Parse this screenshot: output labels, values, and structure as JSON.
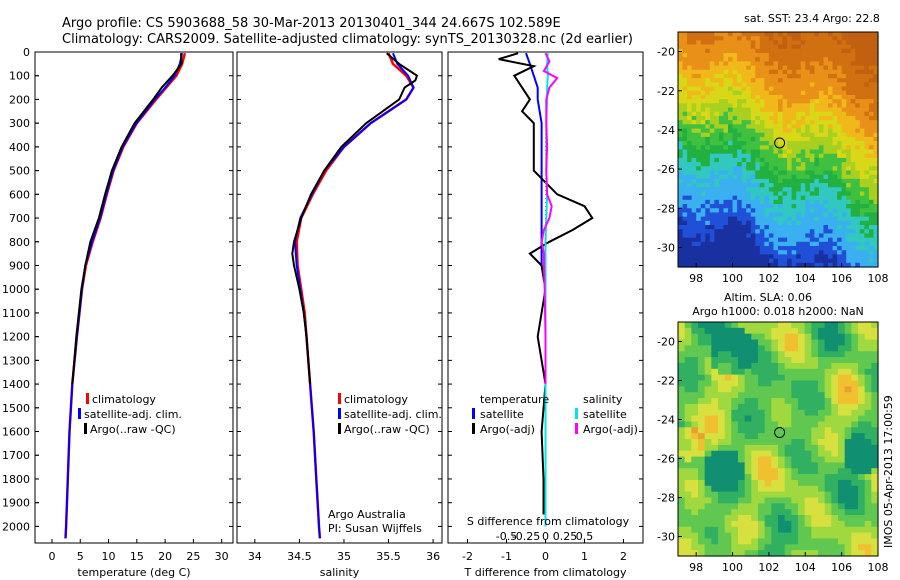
{
  "header": {
    "line1": "Argo profile: CS 5903688_58 30-Mar-2013 20130401_344 24.667S 102.589E",
    "line2": "Climatology: CARS2009. Satellite-adjusted climatology: synTS_20130328.nc (2d earlier)"
  },
  "colors": {
    "climatology": "#ff0000",
    "satellite": "#0000ff",
    "argo": "#000000",
    "sat_salinity": "#00e5ee",
    "argo_salinity": "#ff00ff"
  },
  "chart_data": [
    {
      "type": "line",
      "id": "temperature",
      "xlabel": "temperature (deg C)",
      "ylabel": "",
      "xlim": [
        -3,
        32
      ],
      "ylim": [
        2070,
        0
      ],
      "xticks": [
        0,
        5,
        10,
        15,
        20,
        25,
        30
      ],
      "yticks": [
        0,
        100,
        200,
        300,
        400,
        500,
        600,
        700,
        800,
        900,
        1000,
        1100,
        1200,
        1300,
        1400,
        1500,
        1600,
        1700,
        1800,
        1900,
        2000
      ],
      "legend": [
        "climatology",
        "satellite-adj. clim.",
        "Argo(..raw -QC)"
      ],
      "series": [
        {
          "name": "climatology",
          "depth": [
            5,
            50,
            100,
            150,
            200,
            300,
            400,
            500,
            600,
            700,
            800,
            900,
            1000,
            1200,
            1400,
            1600,
            1800,
            2000,
            2050
          ],
          "values": [
            23.5,
            23.0,
            22.0,
            20.2,
            18.4,
            15.0,
            12.6,
            10.9,
            9.7,
            8.6,
            7.2,
            6.0,
            5.3,
            4.4,
            3.6,
            3.1,
            2.8,
            2.5,
            2.4
          ]
        },
        {
          "name": "satellite-adj. clim.",
          "depth": [
            5,
            50,
            100,
            150,
            200,
            300,
            400,
            500,
            600,
            700,
            800,
            900,
            1000,
            1200,
            1400,
            1600,
            1800,
            2000,
            2050
          ],
          "values": [
            23.0,
            22.6,
            21.7,
            20.0,
            18.2,
            14.9,
            12.5,
            10.8,
            9.6,
            8.5,
            7.1,
            5.9,
            5.3,
            4.4,
            3.6,
            3.1,
            2.8,
            2.5,
            2.4
          ]
        },
        {
          "name": "Argo(..raw -QC)",
          "depth": [
            5,
            50,
            100,
            150,
            200,
            300,
            400,
            500,
            600,
            700,
            800,
            900,
            1000,
            1200,
            1400
          ],
          "values": [
            22.8,
            22.9,
            21.3,
            19.4,
            17.9,
            14.6,
            12.3,
            10.6,
            9.4,
            8.3,
            6.8,
            5.9,
            5.2,
            4.3,
            3.6
          ]
        }
      ]
    },
    {
      "type": "line",
      "id": "salinity",
      "xlabel": "salinity",
      "xlim": [
        33.8,
        36.1
      ],
      "ylim": [
        2070,
        0
      ],
      "xticks": [
        34,
        34.5,
        35,
        35.5,
        36
      ],
      "legend": [
        "climatology",
        "satellite-adj. clim.",
        "Argo(..raw -QC)"
      ],
      "annotation": [
        "Argo Australia",
        "PI: Susan Wijffels"
      ],
      "series": [
        {
          "name": "climatology",
          "depth": [
            5,
            50,
            100,
            150,
            200,
            300,
            400,
            500,
            600,
            700,
            800,
            900,
            1000,
            1100,
            1200,
            1400,
            1600,
            1800,
            2000,
            2050
          ],
          "values": [
            35.5,
            35.55,
            35.7,
            35.78,
            35.7,
            35.3,
            35.0,
            34.8,
            34.65,
            34.52,
            34.47,
            34.48,
            34.52,
            34.56,
            34.58,
            34.62,
            34.66,
            34.69,
            34.72,
            34.73
          ]
        },
        {
          "name": "satellite-adj. clim.",
          "depth": [
            5,
            50,
            100,
            150,
            200,
            300,
            400,
            500,
            600,
            700,
            800,
            900,
            1000,
            1100,
            1200,
            1400,
            1600,
            1800,
            2000,
            2050
          ],
          "values": [
            35.55,
            35.6,
            35.72,
            35.78,
            35.7,
            35.3,
            35.0,
            34.78,
            34.64,
            34.51,
            34.45,
            34.47,
            34.51,
            34.55,
            34.58,
            34.62,
            34.66,
            34.69,
            34.72,
            34.73
          ]
        },
        {
          "name": "Argo(..raw -QC)",
          "depth": [
            5,
            50,
            100,
            120,
            150,
            200,
            300,
            400,
            500,
            600,
            700,
            800,
            850,
            900,
            1000,
            1100,
            1200,
            1400
          ],
          "values": [
            35.48,
            35.62,
            35.82,
            35.8,
            35.68,
            35.62,
            35.25,
            34.97,
            34.78,
            34.63,
            34.52,
            34.44,
            34.42,
            34.44,
            34.5,
            34.55,
            34.58,
            34.62
          ]
        }
      ]
    },
    {
      "type": "line",
      "id": "difference",
      "xlabel": "T difference from climatology",
      "top_axis_label": "S difference from climatology",
      "xlim": [
        -2.5,
        2.5
      ],
      "ylim": [
        2070,
        0
      ],
      "xticks": [
        -2,
        -1,
        0,
        1,
        2
      ],
      "xtick_labels": [
        "-2",
        "-1",
        "0",
        "1",
        "2"
      ],
      "s_ticks": [
        -0.5,
        -0.25,
        0,
        0.25,
        0.5
      ],
      "s_tick_labels": [
        "-0.5",
        "-0.25",
        "0",
        "0.25",
        "0.5"
      ],
      "legend_temperature": {
        "title": "temperature",
        "items": [
          "satellite",
          "Argo(-adj)"
        ]
      },
      "legend_salinity": {
        "title": "salinity",
        "items": [
          "satellite",
          "Argo(-adj)"
        ]
      },
      "series": [
        {
          "name": "temperature satellite",
          "depth": [
            5,
            50,
            100,
            150,
            200,
            300,
            400,
            500,
            600,
            700,
            800,
            900,
            1000,
            1200,
            1400,
            1600,
            1800,
            2000
          ],
          "values": [
            -0.5,
            -0.4,
            -0.3,
            -0.2,
            -0.2,
            -0.1,
            -0.1,
            -0.1,
            -0.1,
            -0.1,
            -0.1,
            -0.1,
            0,
            0,
            0,
            0,
            0,
            0
          ]
        },
        {
          "name": "temperature Argo(-adj)",
          "depth": [
            5,
            30,
            60,
            100,
            150,
            200,
            250,
            300,
            400,
            500,
            600,
            650,
            700,
            750,
            800,
            850,
            900,
            1000,
            1100,
            1200,
            1400,
            1600,
            1800,
            1950
          ],
          "values": [
            -0.7,
            -1.2,
            -0.3,
            -0.8,
            -0.6,
            -0.4,
            -0.6,
            -0.3,
            -0.3,
            -0.3,
            0.3,
            1.0,
            1.2,
            0.7,
            0.1,
            -0.4,
            -0.1,
            0,
            -0.1,
            -0.2,
            0,
            -0.1,
            -0.05,
            -0.05
          ]
        },
        {
          "name": "salinity satellite",
          "depth": [
            5,
            50,
            100,
            150,
            200,
            300,
            400,
            500,
            600,
            700,
            800,
            900,
            1000,
            1200,
            1400,
            1600,
            1800,
            2000
          ],
          "values": [
            0.03,
            0.02,
            0.03,
            0.02,
            0.02,
            0.01,
            0.01,
            0.01,
            0.02,
            0.01,
            0,
            0,
            0,
            0,
            0,
            0,
            0,
            0
          ]
        },
        {
          "name": "salinity Argo(-adj)",
          "depth": [
            5,
            40,
            80,
            110,
            150,
            200,
            300,
            400,
            500,
            600,
            650,
            700,
            750,
            800,
            850,
            900,
            1000,
            1200,
            1400
          ],
          "values": [
            0.0,
            0.05,
            -0.02,
            0.15,
            0.05,
            0.01,
            0.01,
            0.02,
            0.01,
            0.02,
            0.08,
            0.05,
            -0.02,
            -0.05,
            -0.02,
            -0.02,
            -0.01,
            0,
            0
          ]
        }
      ]
    },
    {
      "type": "heatmap",
      "id": "sst-map",
      "title": "sat. SST: 23.4  Argo: 22.8",
      "xlim": [
        97,
        108
      ],
      "ylim": [
        -31,
        -19
      ],
      "xticks": [
        98,
        100,
        102,
        104,
        106,
        108
      ],
      "yticks": [
        -20,
        -22,
        -24,
        -26,
        -28,
        -30
      ],
      "marker": [
        102.589,
        -24.667
      ]
    },
    {
      "type": "heatmap",
      "id": "sla-map",
      "title": "Altim. SLA: 0.06",
      "subtitle": "Argo h1000: 0.018  h2000: NaN",
      "xlim": [
        97,
        108
      ],
      "ylim": [
        -31,
        -19
      ],
      "xticks": [
        98,
        100,
        102,
        104,
        106,
        108
      ],
      "yticks": [
        -20,
        -22,
        -24,
        -26,
        -28,
        -30
      ],
      "marker": [
        102.589,
        -24.667
      ]
    }
  ],
  "footer": {
    "stamp": "IMOS 05-Apr-2013 17:00:59"
  }
}
